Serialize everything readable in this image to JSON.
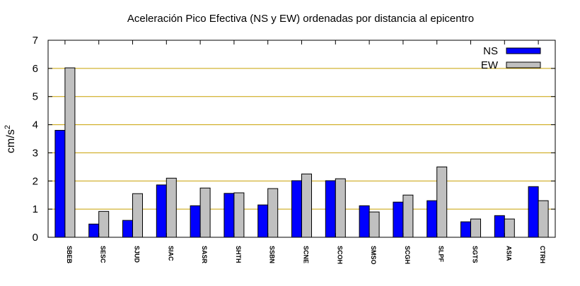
{
  "chart_data": {
    "type": "bar",
    "title": "Aceleración Pico Efectiva (NS y EW) ordenadas por distancia al epicentro",
    "ylabel_base": "cm/s",
    "ylabel_exp": "2",
    "xlabel": "",
    "ylim": [
      0,
      7
    ],
    "yticks": [
      "0",
      "1",
      "2",
      "3",
      "4",
      "5",
      "6",
      "7"
    ],
    "grid": "horizontal",
    "legend_position": "top-right",
    "categories": [
      "SBEB",
      "SESC",
      "SJUD",
      "SIAC",
      "SASR",
      "SHTH",
      "SSBN",
      "SCNE",
      "SCOH",
      "SMSO",
      "SCGH",
      "SLPF",
      "SGTS",
      "ASIA",
      "CTRH"
    ],
    "series": [
      {
        "name": "NS",
        "color": "#0000ff",
        "values": [
          3.8,
          0.47,
          0.6,
          1.86,
          1.12,
          1.56,
          1.15,
          2.01,
          2.01,
          1.12,
          1.25,
          1.3,
          0.55,
          0.77,
          1.8
        ]
      },
      {
        "name": "EW",
        "color": "#c0c0c0",
        "values": [
          6.02,
          0.92,
          1.55,
          2.1,
          1.75,
          1.58,
          1.73,
          2.25,
          2.08,
          0.9,
          1.5,
          2.5,
          0.65,
          0.65,
          1.3
        ]
      }
    ],
    "grid_color": "#c8a000"
  }
}
